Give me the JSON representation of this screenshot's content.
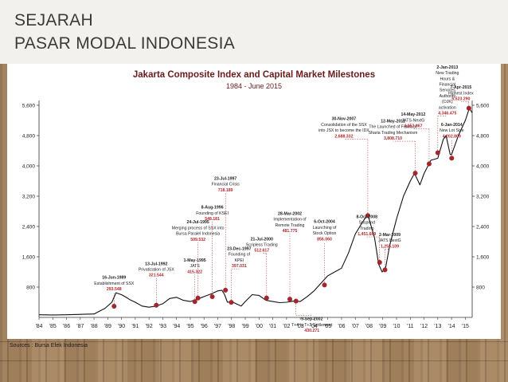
{
  "slide": {
    "title_line1": "SEJARAH",
    "title_line2": "PASAR MODAL INDONESIA",
    "source": "Sources : Bursa Efek Indonesia"
  },
  "colors": {
    "accent": "#6b1a1a",
    "line": "#111111",
    "marker": "#a3262c",
    "label_value": "#b0282c"
  },
  "chart_data": {
    "type": "line",
    "title": "Jakarta Composite Index and Capital Market Milestones",
    "subtitle": "1984 - June 2015",
    "xlabel": "",
    "ylabel": "",
    "ylim": [
      0,
      5600
    ],
    "xlim": [
      1984,
      2015.5
    ],
    "grid": false,
    "y_ticks": [
      800,
      1600,
      2400,
      3200,
      4000,
      4800,
      5600
    ],
    "y_tick_labels": [
      "800",
      "1,600",
      "2,400",
      "3,200",
      "4,000",
      "4,800",
      "5,600"
    ],
    "x_ticks": [
      "'84",
      "'85",
      "'86",
      "'87",
      "'88",
      "'89",
      "'90",
      "'91",
      "'92",
      "'93",
      "'94",
      "'95",
      "'96",
      "'97",
      "'98",
      "'99",
      "'00",
      "'01",
      "'02",
      "'03",
      "'04",
      "'05",
      "'06",
      "'07",
      "'08",
      "'09",
      "'10",
      "'11",
      "'12",
      "'13",
      "'14",
      "'15"
    ],
    "series": [
      {
        "x": [
          1984,
          1985,
          1986,
          1987,
          1988,
          1988.8,
          1989.3,
          1989.6,
          1990,
          1990.3,
          1990.6,
          1991,
          1991.5,
          1992,
          1992.5,
          1993,
          1993.5,
          1994,
          1994.5,
          1995,
          1995.5,
          1996,
          1996.5,
          1997,
          1997.3,
          1997.5,
          1997.7,
          1998,
          1998.4,
          1998.7,
          1999,
          1999.5,
          2000,
          2000.5,
          2001,
          2001.5,
          2002,
          2002.5,
          2003,
          2003.5,
          2004,
          2004.5,
          2005,
          2005.5,
          2006,
          2006.5,
          2007,
          2007.5,
          2007.85,
          2008,
          2008.4,
          2008.7,
          2008.95,
          2009.2,
          2009.5,
          2010,
          2010.5,
          2011,
          2011.3,
          2011.7,
          2012,
          2012.5,
          2013,
          2013.4,
          2013.6,
          2013.9,
          2014,
          2014.5,
          2015,
          2015.3,
          2015.5
        ],
        "values": [
          70,
          66,
          70,
          80,
          90,
          240,
          400,
          650,
          600,
          540,
          470,
          400,
          300,
          270,
          300,
          360,
          500,
          530,
          450,
          420,
          480,
          550,
          620,
          700,
          718,
          600,
          400,
          420,
          350,
          300,
          420,
          600,
          580,
          450,
          420,
          390,
          400,
          430,
          420,
          550,
          700,
          900,
          1100,
          1200,
          1300,
          1700,
          2200,
          2500,
          2688,
          2600,
          2100,
          1400,
          1200,
          1300,
          1900,
          2600,
          3200,
          3600,
          3800,
          3500,
          3800,
          4150,
          4200,
          4700,
          4800,
          4300,
          4300,
          4800,
          5200,
          5523,
          5400
        ]
      }
    ],
    "milestones": [
      {
        "date": "16-Jun-1989",
        "text": [
          "Establishment of SSX"
        ],
        "value": "293.548",
        "x": 1989.46,
        "y": 293.548
      },
      {
        "date": "13-Jul-1992",
        "text": [
          "Privatization of JSX"
        ],
        "value": "321.544",
        "x": 1992.53,
        "y": 321.544
      },
      {
        "date": "1-May-1995",
        "text": [
          "JATS"
        ],
        "value": "415.322",
        "x": 1995.33,
        "y": 415.322
      },
      {
        "date": "24-Jul-1995",
        "text": [
          "Merging process of SSX into",
          "Bursa Paralel Indonesia"
        ],
        "value": "509.532",
        "x": 1995.56,
        "y": 509.532
      },
      {
        "date": "8-Aug-1996",
        "text": [
          "Founding of KSEI"
        ],
        "value": "548.181",
        "x": 1996.6,
        "y": 548.181
      },
      {
        "date": "23-Jul-1997",
        "text": [
          "Financial Crisis"
        ],
        "value": "718.189",
        "x": 1997.56,
        "y": 718.189
      },
      {
        "date": "23-Dec-1997",
        "text": [
          "Founding of",
          "KPEI"
        ],
        "value": "397.031",
        "x": 1997.98,
        "y": 397.031
      },
      {
        "date": "21-Jul-2000",
        "text": [
          "Scripless Trading"
        ],
        "value": "512.617",
        "x": 2000.55,
        "y": 512.617
      },
      {
        "date": "28-Mar-2002",
        "text": [
          "Implementation of",
          "Remote Trading"
        ],
        "value": "481.775",
        "x": 2002.24,
        "y": 481.775
      },
      {
        "date": "9-Sep-2002",
        "text": [
          "T+4 to T+3 Settlement"
        ],
        "value": "430.271",
        "x": 2002.69,
        "y": 430.271
      },
      {
        "date": "6-Oct-2004",
        "text": [
          "Launching of",
          "Stock Option"
        ],
        "value": "856.060",
        "x": 2004.76,
        "y": 856.06
      },
      {
        "date": "30-Nov-2007",
        "text": [
          "Consolidation of the SSX",
          "into JSX to become the IDX"
        ],
        "value": "2,688.332",
        "x": 2007.91,
        "y": 2688.332
      },
      {
        "date": "8-Oct-2008",
        "text": [
          "Suspend",
          "Trading"
        ],
        "value": "1,451.669",
        "x": 2008.77,
        "y": 1451.669
      },
      {
        "date": "2-Mar-2009",
        "text": [
          "JATS NextG"
        ],
        "value": "1,256.109",
        "x": 2009.16,
        "y": 1256.109
      },
      {
        "date": "12-May-2011",
        "text": [
          "The Launched of Fatwa of",
          "Sharia Trading Mechanism"
        ],
        "value": "3,808.710",
        "x": 2011.36,
        "y": 3808.71
      },
      {
        "date": "14-May-2012",
        "text": [
          "JATS-NextG"
        ],
        "value": "4,053.067",
        "x": 2012.37,
        "y": 4053.067
      },
      {
        "date": "2-Jan-2013",
        "text": [
          "New Trading",
          "Hours &",
          "Financial",
          "Services",
          "Authority",
          "(OJK)",
          "activation"
        ],
        "value": "4,346.475",
        "x": 2013.0,
        "y": 4346.475
      },
      {
        "date": "6-Jan-2014",
        "text": [
          "New Lot Size"
        ],
        "value": "4,202.809",
        "x": 2014.01,
        "y": 4202.809
      },
      {
        "date": "7-Apr-2015",
        "text": [
          "Highest Index"
        ],
        "value": "5,523.290",
        "x": 2015.26,
        "y": 5523.29
      }
    ]
  }
}
